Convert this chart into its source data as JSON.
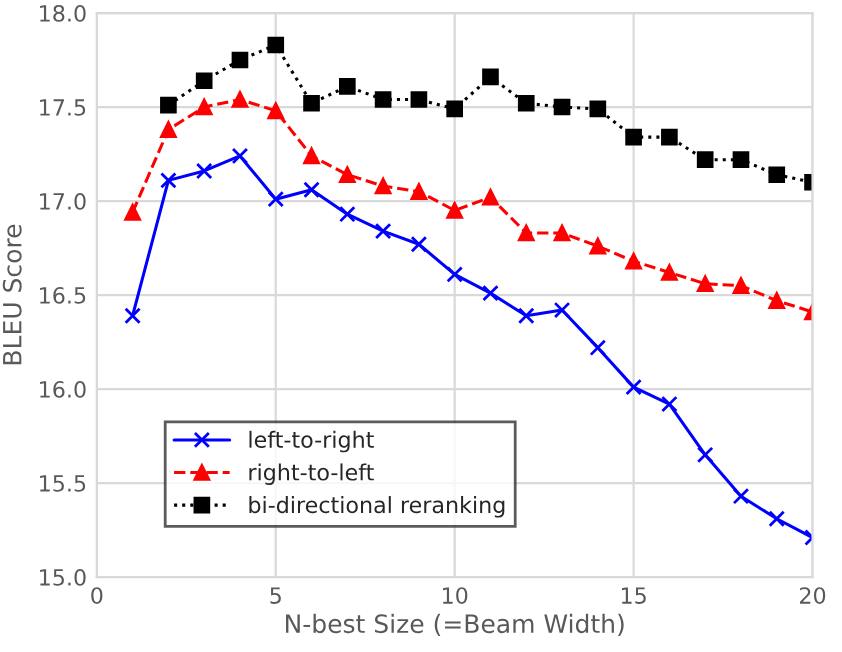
{
  "chart_data": {
    "type": "line",
    "xlabel": "N-best Size (=Beam Width)",
    "ylabel": "BLEU Score",
    "x": [
      1,
      2,
      3,
      4,
      5,
      6,
      7,
      8,
      9,
      10,
      11,
      12,
      13,
      14,
      15,
      16,
      17,
      18,
      19,
      20
    ],
    "series": [
      {
        "name": "left-to-right",
        "color": "#0000ff",
        "marker": "cross",
        "line_style": "solid",
        "values": [
          16.39,
          17.11,
          17.16,
          17.24,
          17.01,
          17.06,
          16.93,
          16.84,
          16.77,
          16.61,
          16.51,
          16.39,
          16.42,
          16.22,
          16.01,
          15.92,
          15.65,
          15.43,
          15.31,
          15.21
        ]
      },
      {
        "name": "right-to-left",
        "color": "#ff0000",
        "marker": "triangle",
        "line_style": "dashed",
        "values": [
          16.94,
          17.38,
          17.5,
          17.54,
          17.48,
          17.24,
          17.14,
          17.08,
          17.05,
          16.95,
          17.02,
          16.83,
          16.83,
          16.76,
          16.68,
          16.62,
          16.56,
          16.55,
          16.47,
          16.41
        ]
      },
      {
        "name": "bi-directional reranking",
        "color": "#000000",
        "marker": "square",
        "line_style": "dotted",
        "values": [
          null,
          17.51,
          17.64,
          17.75,
          17.83,
          17.52,
          17.61,
          17.54,
          17.54,
          17.49,
          17.66,
          17.52,
          17.5,
          17.49,
          17.34,
          17.34,
          17.22,
          17.22,
          17.14,
          17.1
        ]
      }
    ],
    "xlim": [
      0,
      20
    ],
    "xticks": [
      0,
      5,
      10,
      15,
      20
    ],
    "ylim": [
      15.0,
      18.0
    ],
    "yticks": [
      {
        "value": 15.0,
        "label": "15.0"
      },
      {
        "value": 15.5,
        "label": "15.5"
      },
      {
        "value": 16.0,
        "label": "16.0"
      },
      {
        "value": 16.5,
        "label": "16.5"
      },
      {
        "value": 17.0,
        "label": "17.0"
      },
      {
        "value": 17.5,
        "label": "17.5"
      },
      {
        "value": 18.0,
        "label": "18.0"
      }
    ],
    "grid": true,
    "legend": "bottom left"
  }
}
